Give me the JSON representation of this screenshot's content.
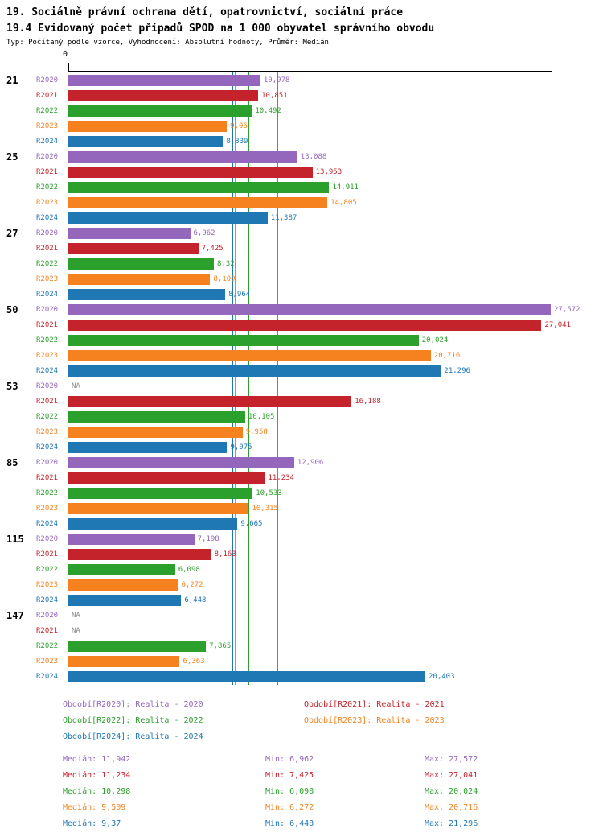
{
  "titles": {
    "line1": "19. Sociálně právní ochrana dětí, opatrovnictví, sociální práce",
    "line2": "19.4 Evidovaný počet případů SPOD na 1 000 obyvatel správního obvodu",
    "subtitle": "Typ: Počítaný podle vzorce, Vyhodnocení: Absolutní hodnoty, Průměr: Medián"
  },
  "axis": {
    "zero_label": "0"
  },
  "series_colors": {
    "R2020": "#9467bd",
    "R2021": "#c5232b",
    "R2022": "#2ca02c",
    "R2023": "#f5821f",
    "R2024": "#1f77b4",
    "na": "#8a8a8a"
  },
  "chart_data": {
    "type": "bar",
    "orientation": "horizontal",
    "xlim": [
      0,
      27.572
    ],
    "grid": false,
    "series_names": [
      "R2020",
      "R2021",
      "R2022",
      "R2023",
      "R2024"
    ],
    "categories": [
      "21",
      "25",
      "27",
      "50",
      "53",
      "85",
      "115",
      "147"
    ],
    "groups": [
      {
        "label": "21",
        "bars": [
          {
            "series": "R2020",
            "value": 10.978,
            "label": "10,978"
          },
          {
            "series": "R2021",
            "value": 10.851,
            "label": "10,851"
          },
          {
            "series": "R2022",
            "value": 10.492,
            "label": "10,492"
          },
          {
            "series": "R2023",
            "value": 9.06,
            "label": "9,06"
          },
          {
            "series": "R2024",
            "value": 8.839,
            "label": "8,839"
          }
        ]
      },
      {
        "label": "25",
        "bars": [
          {
            "series": "R2020",
            "value": 13.088,
            "label": "13,088"
          },
          {
            "series": "R2021",
            "value": 13.953,
            "label": "13,953"
          },
          {
            "series": "R2022",
            "value": 14.911,
            "label": "14,911"
          },
          {
            "series": "R2023",
            "value": 14.805,
            "label": "14,805"
          },
          {
            "series": "R2024",
            "value": 11.387,
            "label": "11,387"
          }
        ]
      },
      {
        "label": "27",
        "bars": [
          {
            "series": "R2020",
            "value": 6.962,
            "label": "6,962"
          },
          {
            "series": "R2021",
            "value": 7.425,
            "label": "7,425"
          },
          {
            "series": "R2022",
            "value": 8.32,
            "label": "8,32"
          },
          {
            "series": "R2023",
            "value": 8.109,
            "label": "8,109"
          },
          {
            "series": "R2024",
            "value": 8.964,
            "label": "8,964"
          }
        ]
      },
      {
        "label": "50",
        "bars": [
          {
            "series": "R2020",
            "value": 27.572,
            "label": "27,572"
          },
          {
            "series": "R2021",
            "value": 27.041,
            "label": "27,041"
          },
          {
            "series": "R2022",
            "value": 20.024,
            "label": "20,024"
          },
          {
            "series": "R2023",
            "value": 20.716,
            "label": "20,716"
          },
          {
            "series": "R2024",
            "value": 21.296,
            "label": "21,296"
          }
        ]
      },
      {
        "label": "53",
        "bars": [
          {
            "series": "R2020",
            "value": null,
            "label": "NA"
          },
          {
            "series": "R2021",
            "value": 16.188,
            "label": "16,188"
          },
          {
            "series": "R2022",
            "value": 10.105,
            "label": "10,105"
          },
          {
            "series": "R2023",
            "value": 9.958,
            "label": "9,958"
          },
          {
            "series": "R2024",
            "value": 9.075,
            "label": "9,075"
          }
        ]
      },
      {
        "label": "85",
        "bars": [
          {
            "series": "R2020",
            "value": 12.906,
            "label": "12,906"
          },
          {
            "series": "R2021",
            "value": 11.234,
            "label": "11,234"
          },
          {
            "series": "R2022",
            "value": 10.533,
            "label": "10,533"
          },
          {
            "series": "R2023",
            "value": 10.315,
            "label": "10,315"
          },
          {
            "series": "R2024",
            "value": 9.665,
            "label": "9,665"
          }
        ]
      },
      {
        "label": "115",
        "bars": [
          {
            "series": "R2020",
            "value": 7.198,
            "label": "7,198"
          },
          {
            "series": "R2021",
            "value": 8.163,
            "label": "8,163"
          },
          {
            "series": "R2022",
            "value": 6.098,
            "label": "6,098"
          },
          {
            "series": "R2023",
            "value": 6.272,
            "label": "6,272"
          },
          {
            "series": "R2024",
            "value": 6.448,
            "label": "6,448"
          }
        ]
      },
      {
        "label": "147",
        "bars": [
          {
            "series": "R2020",
            "value": null,
            "label": "NA"
          },
          {
            "series": "R2021",
            "value": null,
            "label": "NA"
          },
          {
            "series": "R2022",
            "value": 7.865,
            "label": "7,865"
          },
          {
            "series": "R2023",
            "value": 6.363,
            "label": "6,363"
          },
          {
            "series": "R2024",
            "value": 20.403,
            "label": "20,403"
          }
        ]
      }
    ],
    "median_lines": [
      {
        "series": "R2020",
        "value": 11.942
      },
      {
        "series": "R2021",
        "value": 11.234
      },
      {
        "series": "R2022",
        "value": 10.298
      },
      {
        "series": "R2023",
        "value": 9.509
      },
      {
        "series": "R2024",
        "value": 9.37
      }
    ]
  },
  "legend": [
    {
      "series": "R2020",
      "label": "Období[R2020]: Realita - 2020"
    },
    {
      "series": "R2021",
      "label": "Období[R2021]: Realita - 2021"
    },
    {
      "series": "R2022",
      "label": "Období[R2022]: Realita - 2022"
    },
    {
      "series": "R2023",
      "label": "Období[R2023]: Realita - 2023"
    },
    {
      "series": "R2024",
      "label": "Období[R2024]: Realita - 2024"
    }
  ],
  "stats": [
    {
      "series": "R2020",
      "median": "Medián: 11,942",
      "min": "Min: 6,962",
      "max": "Max: 27,572"
    },
    {
      "series": "R2021",
      "median": "Medián: 11,234",
      "min": "Min: 7,425",
      "max": "Max: 27,041"
    },
    {
      "series": "R2022",
      "median": "Medián: 10,298",
      "min": "Min: 6,098",
      "max": "Max: 20,024"
    },
    {
      "series": "R2023",
      "median": "Medián: 9,509",
      "min": "Min: 6,272",
      "max": "Max: 20,716"
    },
    {
      "series": "R2024",
      "median": "Medián: 9,37",
      "min": "Min: 6,448",
      "max": "Max: 21,296"
    }
  ]
}
